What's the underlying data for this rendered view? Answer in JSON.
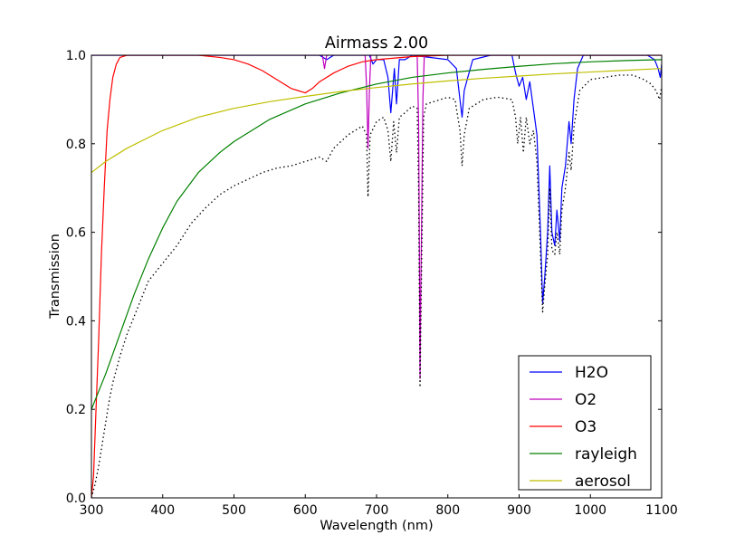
{
  "chart_data": {
    "type": "line",
    "title": "Airmass 2.00",
    "xlabel": "Wavelength (nm)",
    "ylabel": "Transmission",
    "xlim": [
      300,
      1100
    ],
    "ylim": [
      0.0,
      1.0
    ],
    "xticks": [
      "300",
      "400",
      "500",
      "600",
      "700",
      "800",
      "900",
      "1000",
      "1100"
    ],
    "yticks": [
      "0.0",
      "0.2",
      "0.4",
      "0.6",
      "0.8",
      "1.0"
    ],
    "grid": false,
    "legend_position": "lower-right",
    "series": [
      {
        "name": "H2O",
        "color": "#0000ff",
        "style": "solid",
        "points": [
          [
            300,
            1.0
          ],
          [
            620,
            1.0
          ],
          [
            630,
            0.99
          ],
          [
            640,
            1.0
          ],
          [
            690,
            1.0
          ],
          [
            695,
            0.98
          ],
          [
            700,
            0.99
          ],
          [
            710,
            0.99
          ],
          [
            716,
            0.95
          ],
          [
            720,
            0.87
          ],
          [
            725,
            0.97
          ],
          [
            728,
            0.89
          ],
          [
            732,
            0.99
          ],
          [
            740,
            0.99
          ],
          [
            750,
            1.0
          ],
          [
            800,
            0.99
          ],
          [
            812,
            0.97
          ],
          [
            817,
            0.9
          ],
          [
            820,
            0.86
          ],
          [
            823,
            0.92
          ],
          [
            828,
            0.95
          ],
          [
            835,
            0.99
          ],
          [
            860,
            1.0
          ],
          [
            890,
            1.0
          ],
          [
            895,
            0.96
          ],
          [
            900,
            0.93
          ],
          [
            905,
            0.95
          ],
          [
            910,
            0.9
          ],
          [
            915,
            0.94
          ],
          [
            920,
            0.88
          ],
          [
            925,
            0.82
          ],
          [
            930,
            0.6
          ],
          [
            933,
            0.44
          ],
          [
            936,
            0.5
          ],
          [
            940,
            0.6
          ],
          [
            943,
            0.75
          ],
          [
            946,
            0.6
          ],
          [
            950,
            0.57
          ],
          [
            953,
            0.65
          ],
          [
            957,
            0.58
          ],
          [
            960,
            0.7
          ],
          [
            965,
            0.75
          ],
          [
            970,
            0.85
          ],
          [
            973,
            0.8
          ],
          [
            977,
            0.9
          ],
          [
            982,
            0.97
          ],
          [
            990,
            1.0
          ],
          [
            1060,
            1.0
          ],
          [
            1080,
            1.0
          ],
          [
            1090,
            0.99
          ],
          [
            1095,
            0.97
          ],
          [
            1098,
            0.95
          ],
          [
            1100,
            0.98
          ]
        ]
      },
      {
        "name": "O2",
        "color": "#bf00bf",
        "style": "solid",
        "points": [
          [
            300,
            1.0
          ],
          [
            624,
            1.0
          ],
          [
            627,
            0.97
          ],
          [
            630,
            1.0
          ],
          [
            684,
            1.0
          ],
          [
            686,
            0.93
          ],
          [
            688,
            0.79
          ],
          [
            690,
            0.92
          ],
          [
            692,
            1.0
          ],
          [
            757,
            1.0
          ],
          [
            759,
            0.85
          ],
          [
            760,
            0.59
          ],
          [
            761,
            0.27
          ],
          [
            762,
            0.46
          ],
          [
            763,
            0.59
          ],
          [
            765,
            0.9
          ],
          [
            767,
            1.0
          ],
          [
            1100,
            1.0
          ]
        ]
      },
      {
        "name": "O3",
        "color": "#ff0000",
        "style": "solid",
        "points": [
          [
            300,
            0.0
          ],
          [
            303,
            0.05
          ],
          [
            306,
            0.18
          ],
          [
            310,
            0.35
          ],
          [
            314,
            0.55
          ],
          [
            318,
            0.7
          ],
          [
            322,
            0.83
          ],
          [
            326,
            0.9
          ],
          [
            330,
            0.95
          ],
          [
            335,
            0.98
          ],
          [
            340,
            0.995
          ],
          [
            350,
            1.0
          ],
          [
            450,
            1.0
          ],
          [
            480,
            0.995
          ],
          [
            500,
            0.99
          ],
          [
            520,
            0.98
          ],
          [
            540,
            0.965
          ],
          [
            560,
            0.945
          ],
          [
            580,
            0.925
          ],
          [
            590,
            0.92
          ],
          [
            600,
            0.915
          ],
          [
            610,
            0.925
          ],
          [
            620,
            0.94
          ],
          [
            640,
            0.96
          ],
          [
            660,
            0.975
          ],
          [
            680,
            0.985
          ],
          [
            700,
            0.99
          ],
          [
            750,
            0.997
          ],
          [
            800,
            1.0
          ],
          [
            1100,
            1.0
          ]
        ]
      },
      {
        "name": "rayleigh",
        "color": "#008000",
        "style": "solid",
        "points": [
          [
            300,
            0.2
          ],
          [
            320,
            0.28
          ],
          [
            340,
            0.37
          ],
          [
            360,
            0.46
          ],
          [
            380,
            0.54
          ],
          [
            400,
            0.61
          ],
          [
            420,
            0.67
          ],
          [
            450,
            0.735
          ],
          [
            480,
            0.78
          ],
          [
            500,
            0.805
          ],
          [
            550,
            0.855
          ],
          [
            600,
            0.89
          ],
          [
            650,
            0.915
          ],
          [
            700,
            0.935
          ],
          [
            750,
            0.95
          ],
          [
            800,
            0.96
          ],
          [
            850,
            0.968
          ],
          [
            900,
            0.975
          ],
          [
            950,
            0.981
          ],
          [
            1000,
            0.985
          ],
          [
            1050,
            0.988
          ],
          [
            1100,
            0.99
          ]
        ]
      },
      {
        "name": "aerosol",
        "color": "#bfbf00",
        "style": "solid",
        "points": [
          [
            300,
            0.735
          ],
          [
            320,
            0.76
          ],
          [
            350,
            0.79
          ],
          [
            400,
            0.83
          ],
          [
            450,
            0.86
          ],
          [
            500,
            0.88
          ],
          [
            550,
            0.895
          ],
          [
            600,
            0.907
          ],
          [
            650,
            0.918
          ],
          [
            700,
            0.927
          ],
          [
            750,
            0.935
          ],
          [
            800,
            0.942
          ],
          [
            850,
            0.948
          ],
          [
            900,
            0.953
          ],
          [
            950,
            0.958
          ],
          [
            1000,
            0.962
          ],
          [
            1050,
            0.966
          ],
          [
            1100,
            0.97
          ]
        ]
      },
      {
        "name": "",
        "color": "#000000",
        "style": "dotted",
        "points": [
          [
            300,
            0.0
          ],
          [
            305,
            0.03
          ],
          [
            310,
            0.07
          ],
          [
            315,
            0.12
          ],
          [
            320,
            0.17
          ],
          [
            325,
            0.22
          ],
          [
            330,
            0.26
          ],
          [
            340,
            0.32
          ],
          [
            350,
            0.37
          ],
          [
            360,
            0.41
          ],
          [
            370,
            0.45
          ],
          [
            380,
            0.49
          ],
          [
            400,
            0.53
          ],
          [
            420,
            0.57
          ],
          [
            440,
            0.62
          ],
          [
            460,
            0.655
          ],
          [
            480,
            0.685
          ],
          [
            500,
            0.705
          ],
          [
            520,
            0.72
          ],
          [
            540,
            0.735
          ],
          [
            560,
            0.745
          ],
          [
            580,
            0.75
          ],
          [
            600,
            0.76
          ],
          [
            610,
            0.765
          ],
          [
            620,
            0.77
          ],
          [
            630,
            0.76
          ],
          [
            640,
            0.79
          ],
          [
            660,
            0.82
          ],
          [
            680,
            0.84
          ],
          [
            686,
            0.82
          ],
          [
            688,
            0.68
          ],
          [
            691,
            0.82
          ],
          [
            700,
            0.85
          ],
          [
            710,
            0.86
          ],
          [
            716,
            0.83
          ],
          [
            720,
            0.76
          ],
          [
            724,
            0.85
          ],
          [
            728,
            0.78
          ],
          [
            732,
            0.86
          ],
          [
            740,
            0.87
          ],
          [
            750,
            0.885
          ],
          [
            757,
            0.88
          ],
          [
            759,
            0.7
          ],
          [
            761,
            0.25
          ],
          [
            763,
            0.5
          ],
          [
            766,
            0.86
          ],
          [
            770,
            0.89
          ],
          [
            790,
            0.9
          ],
          [
            800,
            0.905
          ],
          [
            810,
            0.9
          ],
          [
            817,
            0.83
          ],
          [
            820,
            0.75
          ],
          [
            823,
            0.82
          ],
          [
            830,
            0.88
          ],
          [
            850,
            0.9
          ],
          [
            870,
            0.905
          ],
          [
            890,
            0.9
          ],
          [
            895,
            0.86
          ],
          [
            898,
            0.8
          ],
          [
            902,
            0.86
          ],
          [
            906,
            0.78
          ],
          [
            910,
            0.86
          ],
          [
            915,
            0.8
          ],
          [
            920,
            0.83
          ],
          [
            925,
            0.76
          ],
          [
            930,
            0.55
          ],
          [
            933,
            0.42
          ],
          [
            936,
            0.48
          ],
          [
            940,
            0.55
          ],
          [
            943,
            0.7
          ],
          [
            946,
            0.56
          ],
          [
            950,
            0.55
          ],
          [
            953,
            0.6
          ],
          [
            957,
            0.55
          ],
          [
            960,
            0.65
          ],
          [
            965,
            0.7
          ],
          [
            970,
            0.78
          ],
          [
            973,
            0.74
          ],
          [
            977,
            0.84
          ],
          [
            985,
            0.92
          ],
          [
            1000,
            0.945
          ],
          [
            1020,
            0.95
          ],
          [
            1040,
            0.955
          ],
          [
            1060,
            0.955
          ],
          [
            1075,
            0.945
          ],
          [
            1085,
            0.935
          ],
          [
            1092,
            0.92
          ],
          [
            1097,
            0.9
          ],
          [
            1100,
            0.93
          ]
        ]
      }
    ]
  }
}
